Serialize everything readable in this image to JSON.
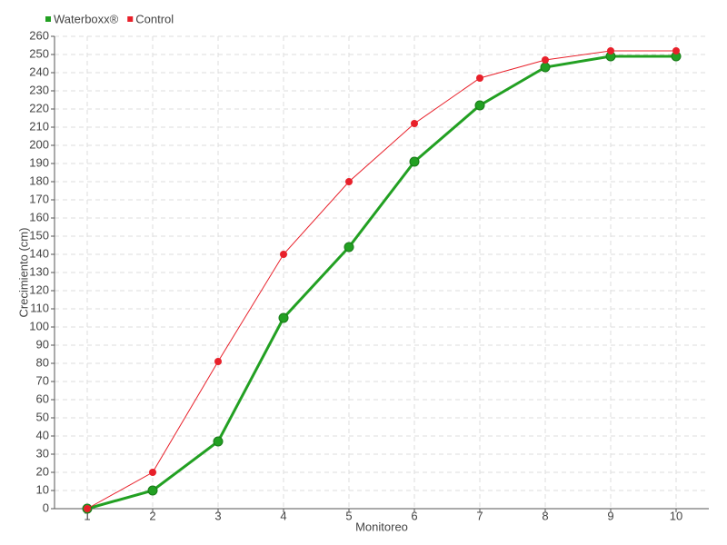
{
  "chart_data": {
    "type": "line",
    "x_label": "Monitoreo",
    "y_label": "Crecimiento (cm)",
    "categories": [
      "1",
      "2",
      "3",
      "4",
      "5",
      "6",
      "7",
      "8",
      "9",
      "10"
    ],
    "series": [
      {
        "name": "Waterboxx®",
        "color": "#22a022",
        "values": [
          0,
          10,
          37,
          105,
          144,
          191,
          222,
          243,
          249,
          249
        ]
      },
      {
        "name": "Control",
        "color": "#e8202a",
        "values": [
          0,
          20,
          81,
          140,
          180,
          212,
          237,
          247,
          252,
          252
        ]
      }
    ],
    "ylim": [
      0,
      260
    ],
    "yticks": [
      0,
      10,
      20,
      30,
      40,
      50,
      60,
      70,
      80,
      90,
      100,
      110,
      120,
      130,
      140,
      150,
      160,
      170,
      180,
      190,
      200,
      210,
      220,
      230,
      240,
      250,
      260
    ],
    "grid": true,
    "legend": "top-left"
  }
}
